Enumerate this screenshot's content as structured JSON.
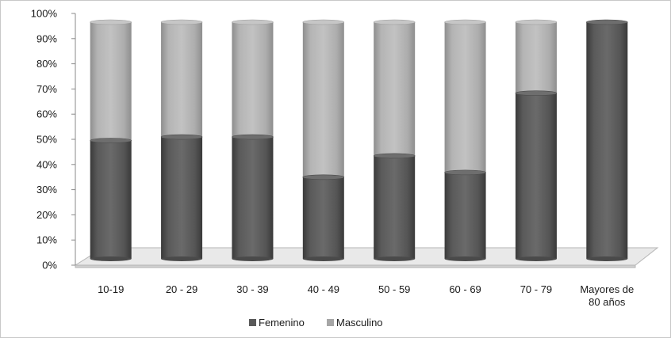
{
  "chart_data": {
    "type": "bar",
    "stacked": true,
    "percent_stacked": true,
    "three_d": true,
    "categories": [
      "10-19",
      "20 - 29",
      "30 - 39",
      "40 - 49",
      "50 - 59",
      "60 - 69",
      "70 - 79",
      "Mayores de 80 años"
    ],
    "category_lines": [
      [
        "10-19"
      ],
      [
        "20 - 29"
      ],
      [
        "30 - 39"
      ],
      [
        "40 - 49"
      ],
      [
        "50 - 59"
      ],
      [
        "60 - 69"
      ],
      [
        "70 - 79"
      ],
      [
        "Mayores de",
        "80 años"
      ]
    ],
    "series": [
      {
        "name": "Femenino",
        "color": "#595959",
        "values": [
          50,
          51.5,
          51.5,
          34.5,
          43.5,
          36.5,
          70,
          100
        ]
      },
      {
        "name": "Masculino",
        "color": "#a6a6a6",
        "values": [
          50,
          48.5,
          48.5,
          65.5,
          56.5,
          63.5,
          30,
          0
        ]
      }
    ],
    "y_ticks": [
      "0%",
      "10%",
      "20%",
      "30%",
      "40%",
      "50%",
      "60%",
      "70%",
      "80%",
      "90%",
      "100%"
    ],
    "ylim": [
      0,
      100
    ],
    "title": "",
    "xlabel": "",
    "ylabel": "",
    "grid": false,
    "legend_position": "bottom"
  }
}
